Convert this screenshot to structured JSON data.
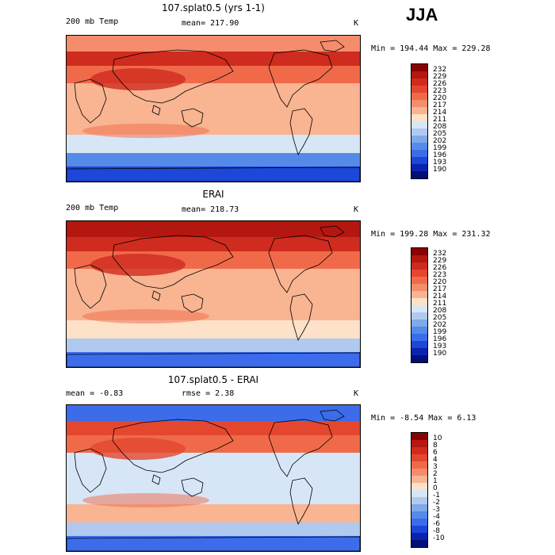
{
  "season": "JJA",
  "panels": [
    {
      "title": "107.splat0.5 (yrs 1-1)",
      "left_label": "200 mb Temp",
      "center_label": "mean= 217.90",
      "units": "K",
      "minmax": "Min = 194.44 Max = 229.28",
      "colorbar": {
        "labels": [
          "232",
          "229",
          "226",
          "223",
          "220",
          "217",
          "214",
          "211",
          "208",
          "205",
          "202",
          "199",
          "196",
          "193",
          "190"
        ],
        "colors": [
          "#8b0000",
          "#b4170f",
          "#cf2b1e",
          "#e4472e",
          "#f06a4a",
          "#f58c6b",
          "#f9b492",
          "#fde1c8",
          "#d7e6f7",
          "#afcaee",
          "#7fa9e8",
          "#568ae8",
          "#3c6cea",
          "#1c47d9",
          "#0b23b0",
          "#001078"
        ]
      },
      "map_colors": {
        "south_cold": "#1c47d9",
        "south_mid": "#568ae8",
        "south_band": "#d7e6f7",
        "tropics": "#f9b492",
        "north_warm": "#f06a4a",
        "north_hot": "#cf2b1e",
        "north_top": "#f58c6b"
      }
    },
    {
      "title": "ERAI",
      "left_label": "200 mb Temp",
      "center_label": "mean= 218.73",
      "units": "K",
      "minmax": "Min = 199.28 Max = 231.32",
      "colorbar": {
        "labels": [
          "232",
          "229",
          "226",
          "223",
          "220",
          "217",
          "214",
          "211",
          "208",
          "205",
          "202",
          "199",
          "196",
          "193",
          "190"
        ],
        "colors": [
          "#8b0000",
          "#b4170f",
          "#cf2b1e",
          "#e4472e",
          "#f06a4a",
          "#f58c6b",
          "#f9b492",
          "#fde1c8",
          "#d7e6f7",
          "#afcaee",
          "#7fa9e8",
          "#568ae8",
          "#3c6cea",
          "#1c47d9",
          "#0b23b0",
          "#001078"
        ]
      },
      "map_colors": {
        "south_cold": "#3c6cea",
        "south_mid": "#afcaee",
        "south_band": "#fde1c8",
        "tropics": "#f9b492",
        "north_warm": "#f06a4a",
        "north_hot": "#cf2b1e",
        "north_top": "#b4170f"
      }
    },
    {
      "title": "107.splat0.5 - ERAI",
      "left_label": "mean = -0.83",
      "center_label": "rmse = 2.38",
      "units": "K",
      "minmax": "Min = -8.54 Max = 6.13",
      "colorbar": {
        "labels": [
          "10",
          "8",
          "6",
          "4",
          "3",
          "2",
          "1",
          "0",
          "-1",
          "-2",
          "-3",
          "-4",
          "-6",
          "-8",
          "-10"
        ],
        "colors": [
          "#8b0000",
          "#b4170f",
          "#cf2b1e",
          "#e4472e",
          "#f06a4a",
          "#f58c6b",
          "#f9b492",
          "#fde1c8",
          "#d7e6f7",
          "#afcaee",
          "#7fa9e8",
          "#568ae8",
          "#3c6cea",
          "#1c47d9",
          "#0b23b0",
          "#001078"
        ]
      },
      "map_colors": {
        "south_cold": "#3c6cea",
        "south_mid": "#afcaee",
        "south_band": "#f9b492",
        "tropics": "#d7e6f7",
        "north_warm": "#f06a4a",
        "north_hot": "#e4472e",
        "north_top": "#3c6cea"
      }
    }
  ]
}
